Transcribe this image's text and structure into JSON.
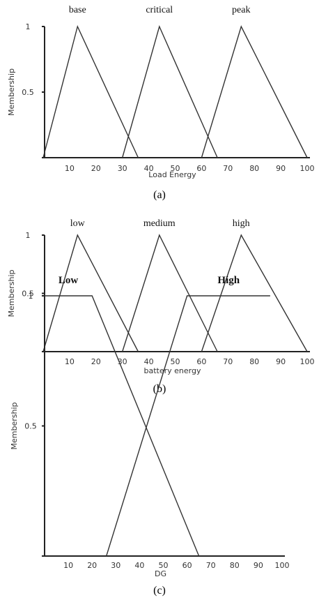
{
  "chart_data": [
    {
      "type": "line",
      "caption": "(a)",
      "xlabel": "Load Energy",
      "ylabel": "Membership",
      "xlim": [
        0,
        100
      ],
      "ylim": [
        0,
        1
      ],
      "x_ticks": [
        "10",
        "20",
        "30",
        "40",
        "50",
        "60",
        "70",
        "80",
        "90",
        "100"
      ],
      "y_ticks": [
        "0.5",
        "1"
      ],
      "grid": false,
      "series": [
        {
          "name": "base",
          "x": [
            0,
            13,
            36
          ],
          "y": [
            0,
            1,
            0
          ]
        },
        {
          "name": "critical",
          "x": [
            30,
            44,
            66
          ],
          "y": [
            0,
            1,
            0
          ]
        },
        {
          "name": "peak",
          "x": [
            60,
            75,
            100
          ],
          "y": [
            0,
            1,
            0
          ]
        }
      ]
    },
    {
      "type": "line",
      "caption": "(b)",
      "xlabel": "battery energy",
      "ylabel": "Membership",
      "xlim": [
        0,
        100
      ],
      "ylim": [
        0,
        1
      ],
      "x_ticks": [
        "10",
        "20",
        "30",
        "40",
        "50",
        "60",
        "70",
        "80",
        "90",
        "100"
      ],
      "y_ticks": [
        "0.5",
        "1"
      ],
      "grid": false,
      "series": [
        {
          "name": "low",
          "x": [
            0,
            13,
            36
          ],
          "y": [
            0,
            1,
            0
          ]
        },
        {
          "name": "medium",
          "x": [
            30,
            44,
            66
          ],
          "y": [
            0,
            1,
            0
          ]
        },
        {
          "name": "high",
          "x": [
            60,
            75,
            100
          ],
          "y": [
            0,
            1,
            0
          ]
        }
      ]
    },
    {
      "type": "line",
      "caption": "(c)",
      "xlabel": "DG",
      "ylabel": "Membership",
      "xlim": [
        0,
        100
      ],
      "ylim": [
        0,
        1
      ],
      "x_ticks": [
        "10",
        "20",
        "30",
        "40",
        "50",
        "60",
        "70",
        "80",
        "90",
        "100"
      ],
      "y_ticks": [
        "0.5",
        "1"
      ],
      "grid": false,
      "series": [
        {
          "name": "Low",
          "x": [
            0,
            20,
            65
          ],
          "y": [
            1,
            1,
            0
          ]
        },
        {
          "name": "High",
          "x": [
            26,
            60,
            95
          ],
          "y": [
            0,
            1,
            1
          ]
        }
      ]
    }
  ]
}
